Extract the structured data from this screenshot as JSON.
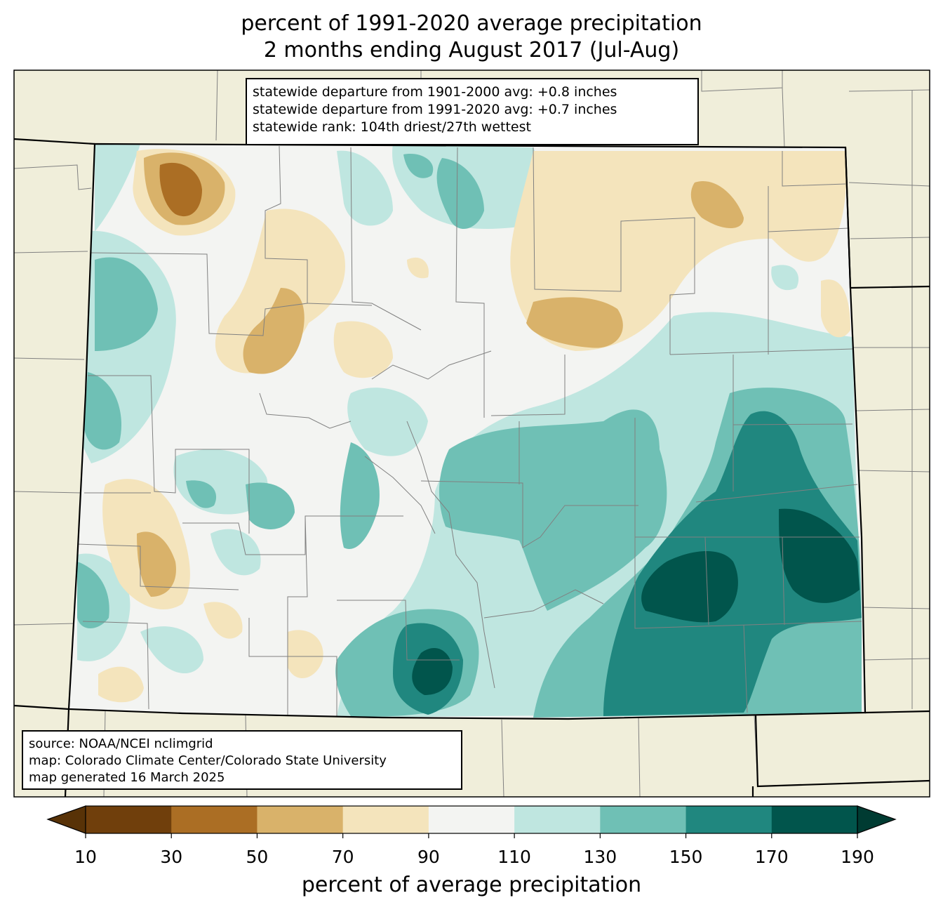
{
  "title": {
    "line1": "percent of 1991-2020 average precipitation",
    "line2": "2 months ending August 2017 (Jul-Aug)"
  },
  "stats": {
    "line1": "statewide departure from 1901-2000 avg: +0.8 inches",
    "line2": "statewide departure from 1991-2020 avg: +0.7 inches",
    "line3": "statewide rank: 104th driest/27th wettest"
  },
  "source": {
    "line1": "source: NOAA/NCEI nclimgrid",
    "line2": "map: Colorado Climate Center/Colorado State University",
    "line3": "map generated 16 March 2025"
  },
  "colorbar": {
    "label": "percent of average precipitation",
    "ticks": [
      "10",
      "30",
      "50",
      "70",
      "90",
      "110",
      "130",
      "150",
      "170",
      "190"
    ],
    "colors": [
      "#703f0c",
      "#ab6e24",
      "#d9b26a",
      "#f4e4bc",
      "#f3f4f2",
      "#bfe6e0",
      "#6fc0b5",
      "#20877f",
      "#01554c"
    ],
    "under_color": "#583207",
    "over_color": "#003b32"
  },
  "colors": {
    "land": "#f0eeda",
    "county_line": "#808080",
    "state_line": "#000000"
  }
}
